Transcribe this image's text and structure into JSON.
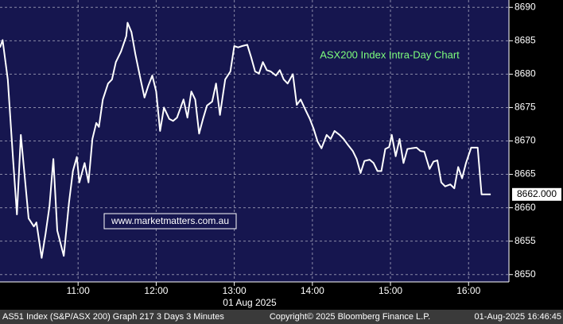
{
  "chart_data": {
    "type": "line",
    "annotation": "ASX200 Index Intra-Day Chart",
    "watermark": "www.marketmatters.com.au",
    "x_label": "01 Aug 2025",
    "footer_left": "AS51 Index (S&P/ASX 200) Graph 217 3 Days 3 Minutes",
    "footer_center": "Copyright© 2025 Bloomberg Finance L.P.",
    "footer_right": "01-Aug-2025 16:46:45",
    "last_label": "8662.000",
    "grid": true,
    "xlim": [
      "10:00",
      "16:31"
    ],
    "xticks": [
      "11:00",
      "12:00",
      "13:00",
      "14:00",
      "15:00",
      "16:00"
    ],
    "ylim": [
      8648.9,
      8691.1
    ],
    "yticks": [
      8650,
      8655,
      8660,
      8665,
      8670,
      8675,
      8680,
      8685,
      8690
    ],
    "series": [
      {
        "color": "#ffffff",
        "x": [
          "10:00",
          "10:02",
          "10:06",
          "10:10",
          "10:13",
          "10:16",
          "10:22",
          "10:26",
          "10:28",
          "10:32",
          "10:35",
          "10:38",
          "10:41",
          "10:44",
          "10:49",
          "10:53",
          "10:56",
          "10:59",
          "11:01",
          "11:05",
          "11:08",
          "11:11",
          "11:14",
          "11:16",
          "11:19",
          "11:23",
          "11:26",
          "11:29",
          "11:33",
          "11:37",
          "11:38",
          "11:41",
          "11:44",
          "11:48",
          "11:51",
          "11:54",
          "11:57",
          "12:00",
          "12:03",
          "12:06",
          "12:10",
          "12:13",
          "12:16",
          "12:21",
          "12:24",
          "12:27",
          "12:30",
          "12:33",
          "12:36",
          "12:39",
          "12:43",
          "12:46",
          "12:49",
          "12:53",
          "12:57",
          "13:00",
          "13:03",
          "13:06",
          "13:10",
          "13:13",
          "13:16",
          "13:19",
          "13:22",
          "13:25",
          "13:28",
          "13:32",
          "13:35",
          "13:38",
          "13:41",
          "13:45",
          "13:48",
          "13:51",
          "13:55",
          "13:58",
          "14:01",
          "14:04",
          "14:07",
          "14:11",
          "14:14",
          "14:17",
          "14:21",
          "14:24",
          "14:27",
          "14:31",
          "14:34",
          "14:37",
          "14:40",
          "14:44",
          "14:47",
          "14:50",
          "14:53",
          "14:56",
          "14:59",
          "15:01",
          "15:04",
          "15:07",
          "15:10",
          "15:13",
          "15:16",
          "15:20",
          "15:23",
          "15:26",
          "15:30",
          "15:33",
          "15:36",
          "15:39",
          "15:42",
          "15:46",
          "15:49",
          "15:52",
          "15:55",
          "15:58",
          "16:02",
          "16:07",
          "16:10",
          "16:17"
        ],
        "values": [
          8684.0,
          8685.1,
          8679.2,
          8667.3,
          8659.0,
          8670.9,
          8658.4,
          8657.2,
          8657.8,
          8652.5,
          8656.1,
          8660.2,
          8667.3,
          8656.6,
          8652.8,
          8660.8,
          8665.5,
          8667.6,
          8663.8,
          8666.7,
          8663.8,
          8670.3,
          8672.7,
          8672.1,
          8676.2,
          8678.6,
          8679.2,
          8681.8,
          8683.4,
          8685.7,
          8687.7,
          8686.3,
          8683.0,
          8679.2,
          8676.5,
          8678.3,
          8679.8,
          8677.4,
          8671.5,
          8675.0,
          8673.3,
          8673.0,
          8673.5,
          8676.2,
          8673.5,
          8677.4,
          8676.2,
          8671.1,
          8673.3,
          8675.3,
          8675.9,
          8678.6,
          8673.9,
          8679.2,
          8680.4,
          8684.2,
          8684.0,
          8684.2,
          8684.4,
          8682.5,
          8680.4,
          8680.1,
          8681.8,
          8680.6,
          8680.4,
          8679.8,
          8680.6,
          8679.2,
          8678.6,
          8680.0,
          8675.4,
          8676.2,
          8674.5,
          8673.3,
          8671.8,
          8669.9,
          8668.9,
          8670.9,
          8670.3,
          8671.5,
          8670.9,
          8670.3,
          8669.5,
          8668.5,
          8667.3,
          8665.2,
          8667.0,
          8667.2,
          8666.7,
          8665.5,
          8665.5,
          8668.8,
          8669.1,
          8670.9,
          8667.7,
          8670.3,
          8666.7,
          8668.8,
          8668.9,
          8669.0,
          8668.5,
          8668.4,
          8665.8,
          8666.9,
          8667.1,
          8663.8,
          8663.2,
          8663.5,
          8662.9,
          8666.1,
          8664.4,
          8666.7,
          8669.0,
          8669.0,
          8662.0,
          8662.0
        ]
      }
    ]
  }
}
